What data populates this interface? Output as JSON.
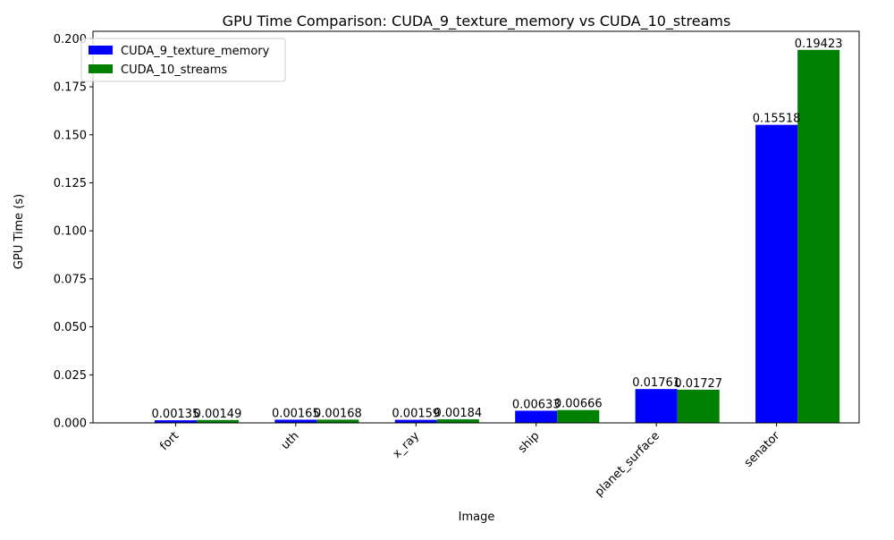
{
  "chart_data": {
    "type": "bar",
    "title": "GPU Time Comparison: CUDA_9_texture_memory vs CUDA_10_streams",
    "xlabel": "Image",
    "ylabel": "GPU Time (s)",
    "categories": [
      "fort",
      "uth",
      "x_ray",
      "ship",
      "planet_surface",
      "senator"
    ],
    "series": [
      {
        "name": "CUDA_9_texture_memory",
        "color": "#0000ff",
        "values": [
          0.00135,
          0.00165,
          0.00159,
          0.00633,
          0.01761,
          0.15518
        ],
        "labels": [
          "0.00135",
          "0.00165",
          "0.00159",
          "0.00633",
          "0.01761",
          "0.15518"
        ]
      },
      {
        "name": "CUDA_10_streams",
        "color": "#008000",
        "values": [
          0.00149,
          0.00168,
          0.00184,
          0.00666,
          0.01727,
          0.19423
        ],
        "labels": [
          "0.00149",
          "0.00168",
          "0.00184",
          "0.00666",
          "0.01727",
          "0.19423"
        ]
      }
    ],
    "ylim": [
      0,
      0.2039
    ],
    "yticks": [
      0.0,
      0.025,
      0.05,
      0.075,
      0.1,
      0.125,
      0.15,
      0.175,
      0.2
    ],
    "ytick_labels": [
      "0.000",
      "0.025",
      "0.050",
      "0.075",
      "0.100",
      "0.125",
      "0.150",
      "0.175",
      "0.200"
    ],
    "grid": false,
    "legend_position": "top-left"
  }
}
